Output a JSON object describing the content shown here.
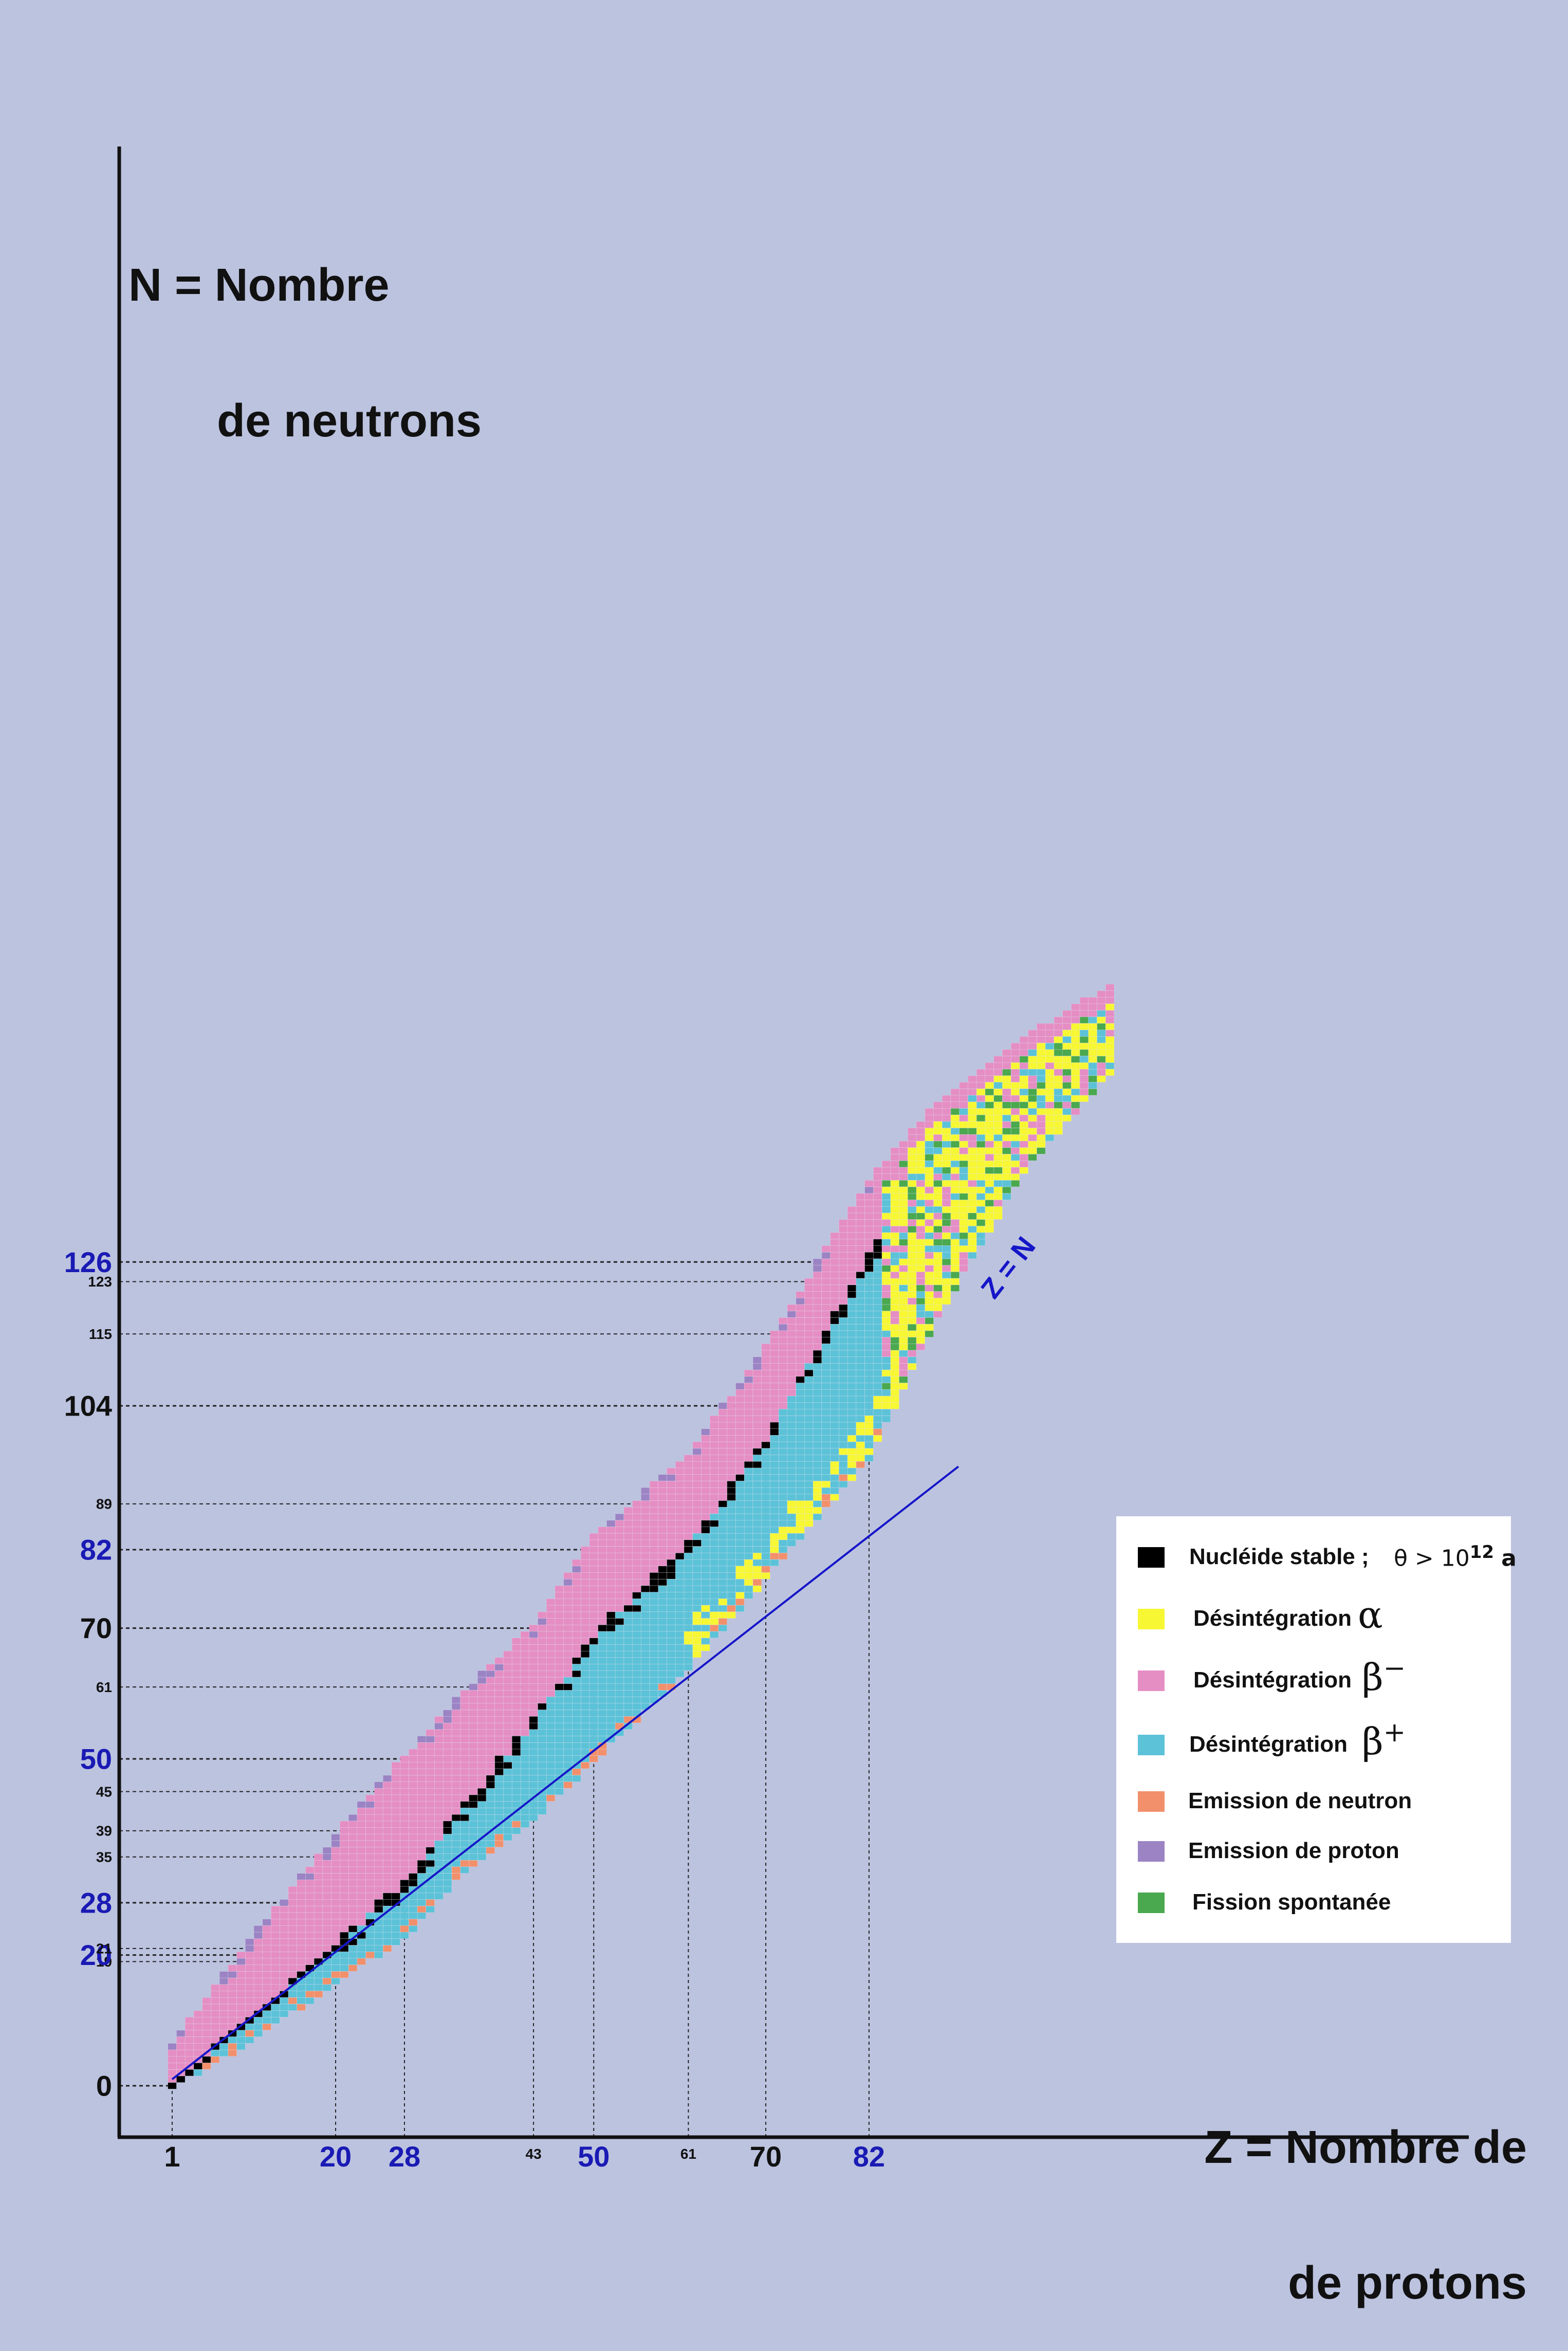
{
  "chart_data": {
    "type": "heatmap",
    "title": "",
    "ylabel": [
      "N = Nombre",
      "de neutrons"
    ],
    "xlabel": [
      "Z = Nombre de",
      "de protons"
    ],
    "xlim": [
      0,
      110
    ],
    "ylim": [
      0,
      170
    ],
    "x_ticks": [
      {
        "value": 1,
        "label": "1",
        "style": "major-black"
      },
      {
        "value": 20,
        "label": "20",
        "style": "major-blue"
      },
      {
        "value": 28,
        "label": "28",
        "style": "major-blue"
      },
      {
        "value": 43,
        "label": "43",
        "style": "minor"
      },
      {
        "value": 50,
        "label": "50",
        "style": "major-blue"
      },
      {
        "value": 61,
        "label": "61",
        "style": "minor"
      },
      {
        "value": 70,
        "label": "70",
        "style": "major-black"
      },
      {
        "value": 82,
        "label": "82",
        "style": "major-blue"
      }
    ],
    "y_ticks": [
      {
        "value": 0,
        "label": "0",
        "style": "major-black"
      },
      {
        "value": 19,
        "label": "19",
        "style": "minor"
      },
      {
        "value": 20,
        "label": "20",
        "style": "major-blue"
      },
      {
        "value": 21,
        "label": "21",
        "style": "minor"
      },
      {
        "value": 28,
        "label": "28",
        "style": "major-blue"
      },
      {
        "value": 35,
        "label": "35",
        "style": "minor"
      },
      {
        "value": 39,
        "label": "39",
        "style": "minor"
      },
      {
        "value": 45,
        "label": "45",
        "style": "minor"
      },
      {
        "value": 50,
        "label": "50",
        "style": "major-blue"
      },
      {
        "value": 61,
        "label": "61",
        "style": "minor"
      },
      {
        "value": 70,
        "label": "70",
        "style": "major-black"
      },
      {
        "value": 82,
        "label": "82",
        "style": "major-blue"
      },
      {
        "value": 89,
        "label": "89",
        "style": "minor"
      },
      {
        "value": 104,
        "label": "104",
        "style": "major-black"
      },
      {
        "value": 115,
        "label": "115",
        "style": "minor"
      },
      {
        "value": 123,
        "label": "123",
        "style": "minor"
      },
      {
        "value": 126,
        "label": "126",
        "style": "major-blue"
      }
    ],
    "diagonal_line": {
      "label": "Z = N",
      "from": [
        1,
        1
      ],
      "to": [
        90,
        90
      ],
      "color": "#1515c8"
    },
    "legend": {
      "placement": "bottom-right",
      "entries": [
        {
          "key": "stable",
          "label": "Nucléide stable ;",
          "color": "#000000",
          "note_base": "θ > 10",
          "note_exp": "12",
          "note_unit": "a"
        },
        {
          "key": "alpha",
          "label": "Désintégration",
          "symbol": "α",
          "color": "#f7f733"
        },
        {
          "key": "beta_minus",
          "label": "Désintégration",
          "symbol": "β",
          "symbol_sup": "−",
          "color": "#e58ec4"
        },
        {
          "key": "beta_plus",
          "label": "Désintégration",
          "symbol": "β",
          "symbol_sup": "+",
          "color": "#5cc2d8"
        },
        {
          "key": "neutron",
          "label": "Emission de neutron",
          "color": "#f2906c"
        },
        {
          "key": "proton",
          "label": "Emission de proton",
          "color": "#9b83c4"
        },
        {
          "key": "fission",
          "label": "Fission spontanée",
          "color": "#4aa84e"
        }
      ]
    },
    "colors": {
      "background": "#bcc3df",
      "axis": "#111111",
      "blue_label": "#1a1ab4",
      "stable_cell_dot": "#555555"
    },
    "band_profile": {
      "z_range": [
        1,
        110
      ],
      "description_points": [
        {
          "z": 1,
          "n_min": 0,
          "n_max": 6,
          "stable_n": 0
        },
        {
          "z": 10,
          "n_min": 7,
          "n_max": 22,
          "stable_n": 10
        },
        {
          "z": 20,
          "n_min": 16,
          "n_max": 38,
          "stable_n": 21
        },
        {
          "z": 28,
          "n_min": 23,
          "n_max": 50,
          "stable_n": 30
        },
        {
          "z": 35,
          "n_min": 33,
          "n_max": 60,
          "stable_n": 42
        },
        {
          "z": 43,
          "n_min": 41,
          "n_max": 70,
          "stable_n": 55
        },
        {
          "z": 50,
          "n_min": 50,
          "n_max": 84,
          "stable_n": 68
        },
        {
          "z": 61,
          "n_min": 64,
          "n_max": 96,
          "stable_n": 82
        },
        {
          "z": 70,
          "n_min": 78,
          "n_max": 113,
          "stable_n": 98
        },
        {
          "z": 82,
          "n_min": 96,
          "n_max": 138,
          "stable_n": 126
        },
        {
          "z": 90,
          "n_min": 118,
          "n_max": 150,
          "stable_n": 140
        },
        {
          "z": 100,
          "n_min": 140,
          "n_max": 160,
          "stable_n": null
        },
        {
          "z": 110,
          "n_min": 155,
          "n_max": 168,
          "stable_n": null
        }
      ]
    }
  }
}
